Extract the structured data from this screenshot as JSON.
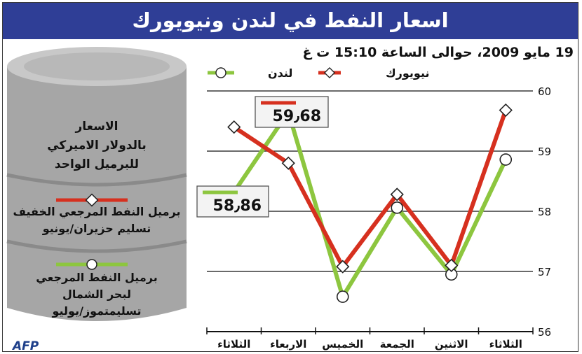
{
  "title": "اسعار النفط في لندن ونيويورك",
  "subtitle": "19 مايو 2009، حوالى الساعة 15:10 ت غ",
  "colors": {
    "header_bg": "#2f3e96",
    "new_york": "#d6301f",
    "london": "#8dc63f",
    "barrel": "#a6a6a6"
  },
  "barrel": {
    "caption": [
      "الاسعار",
      "بالدولار الاميركي",
      "للبرميل الواحد"
    ],
    "legend_ny": [
      "برميل النفط المرجعي الخفيف",
      "تسليم حزيران/يونيو"
    ],
    "legend_london": [
      "برميل النفط المرجعي",
      "لبحر الشمال",
      "تسليمتموز/يوليو"
    ]
  },
  "logo": "AFP",
  "chart_data": {
    "type": "line",
    "categories": [
      "الثلاثاء",
      "الاثنين",
      "الجمعة",
      "الخميس",
      "الاربعاء",
      "الثلاثاء"
    ],
    "ylim": [
      56,
      60
    ],
    "yticks": [
      56,
      57,
      58,
      59,
      60
    ],
    "grid": true,
    "legend_position": "top",
    "series": [
      {
        "name": "نيويورك",
        "marker": "diamond",
        "values": [
          59.68,
          57.1,
          58.28,
          57.08,
          58.8,
          59.4
        ]
      },
      {
        "name": "لندن",
        "marker": "circle",
        "values": [
          58.86,
          56.95,
          58.06,
          56.58,
          59.65,
          58.32
        ]
      }
    ],
    "annotations": [
      {
        "series": "نيويورك",
        "text": "59٫68"
      },
      {
        "series": "لندن",
        "text": "58٫86"
      }
    ]
  }
}
